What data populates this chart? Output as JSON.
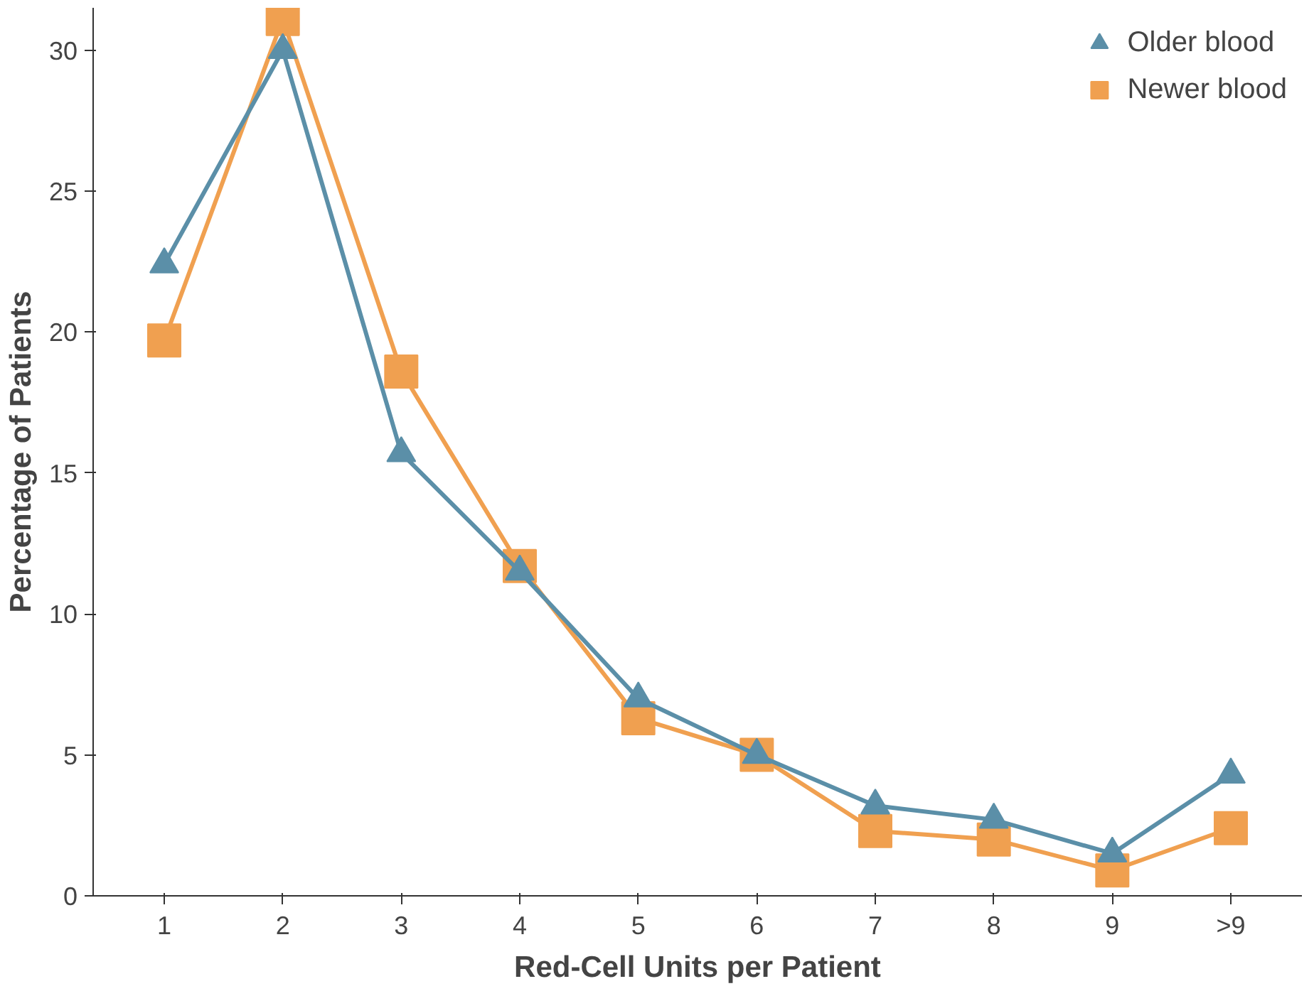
{
  "chart_data": {
    "type": "line",
    "xlabel": "Red-Cell Units per Patient",
    "ylabel": "Percentage of Patients",
    "categories": [
      "1",
      "2",
      "3",
      "4",
      "5",
      "6",
      "7",
      "8",
      "9",
      ">9"
    ],
    "series": [
      {
        "name": "Older blood",
        "color": "#5b8fa8",
        "marker": "triangle",
        "values": [
          22.4,
          30.0,
          15.7,
          11.5,
          7.0,
          5.0,
          3.2,
          2.7,
          1.5,
          4.3
        ]
      },
      {
        "name": "Newer blood",
        "color": "#f0a050",
        "marker": "square",
        "values": [
          19.7,
          31.1,
          18.6,
          11.7,
          6.3,
          5.0,
          2.3,
          2.0,
          0.9,
          2.4
        ]
      }
    ],
    "ylim": [
      0,
      31.5
    ],
    "yticks": [
      0,
      5,
      10,
      15,
      20,
      25,
      30
    ],
    "grid": false,
    "legend": "top right",
    "line_style": "solid"
  }
}
